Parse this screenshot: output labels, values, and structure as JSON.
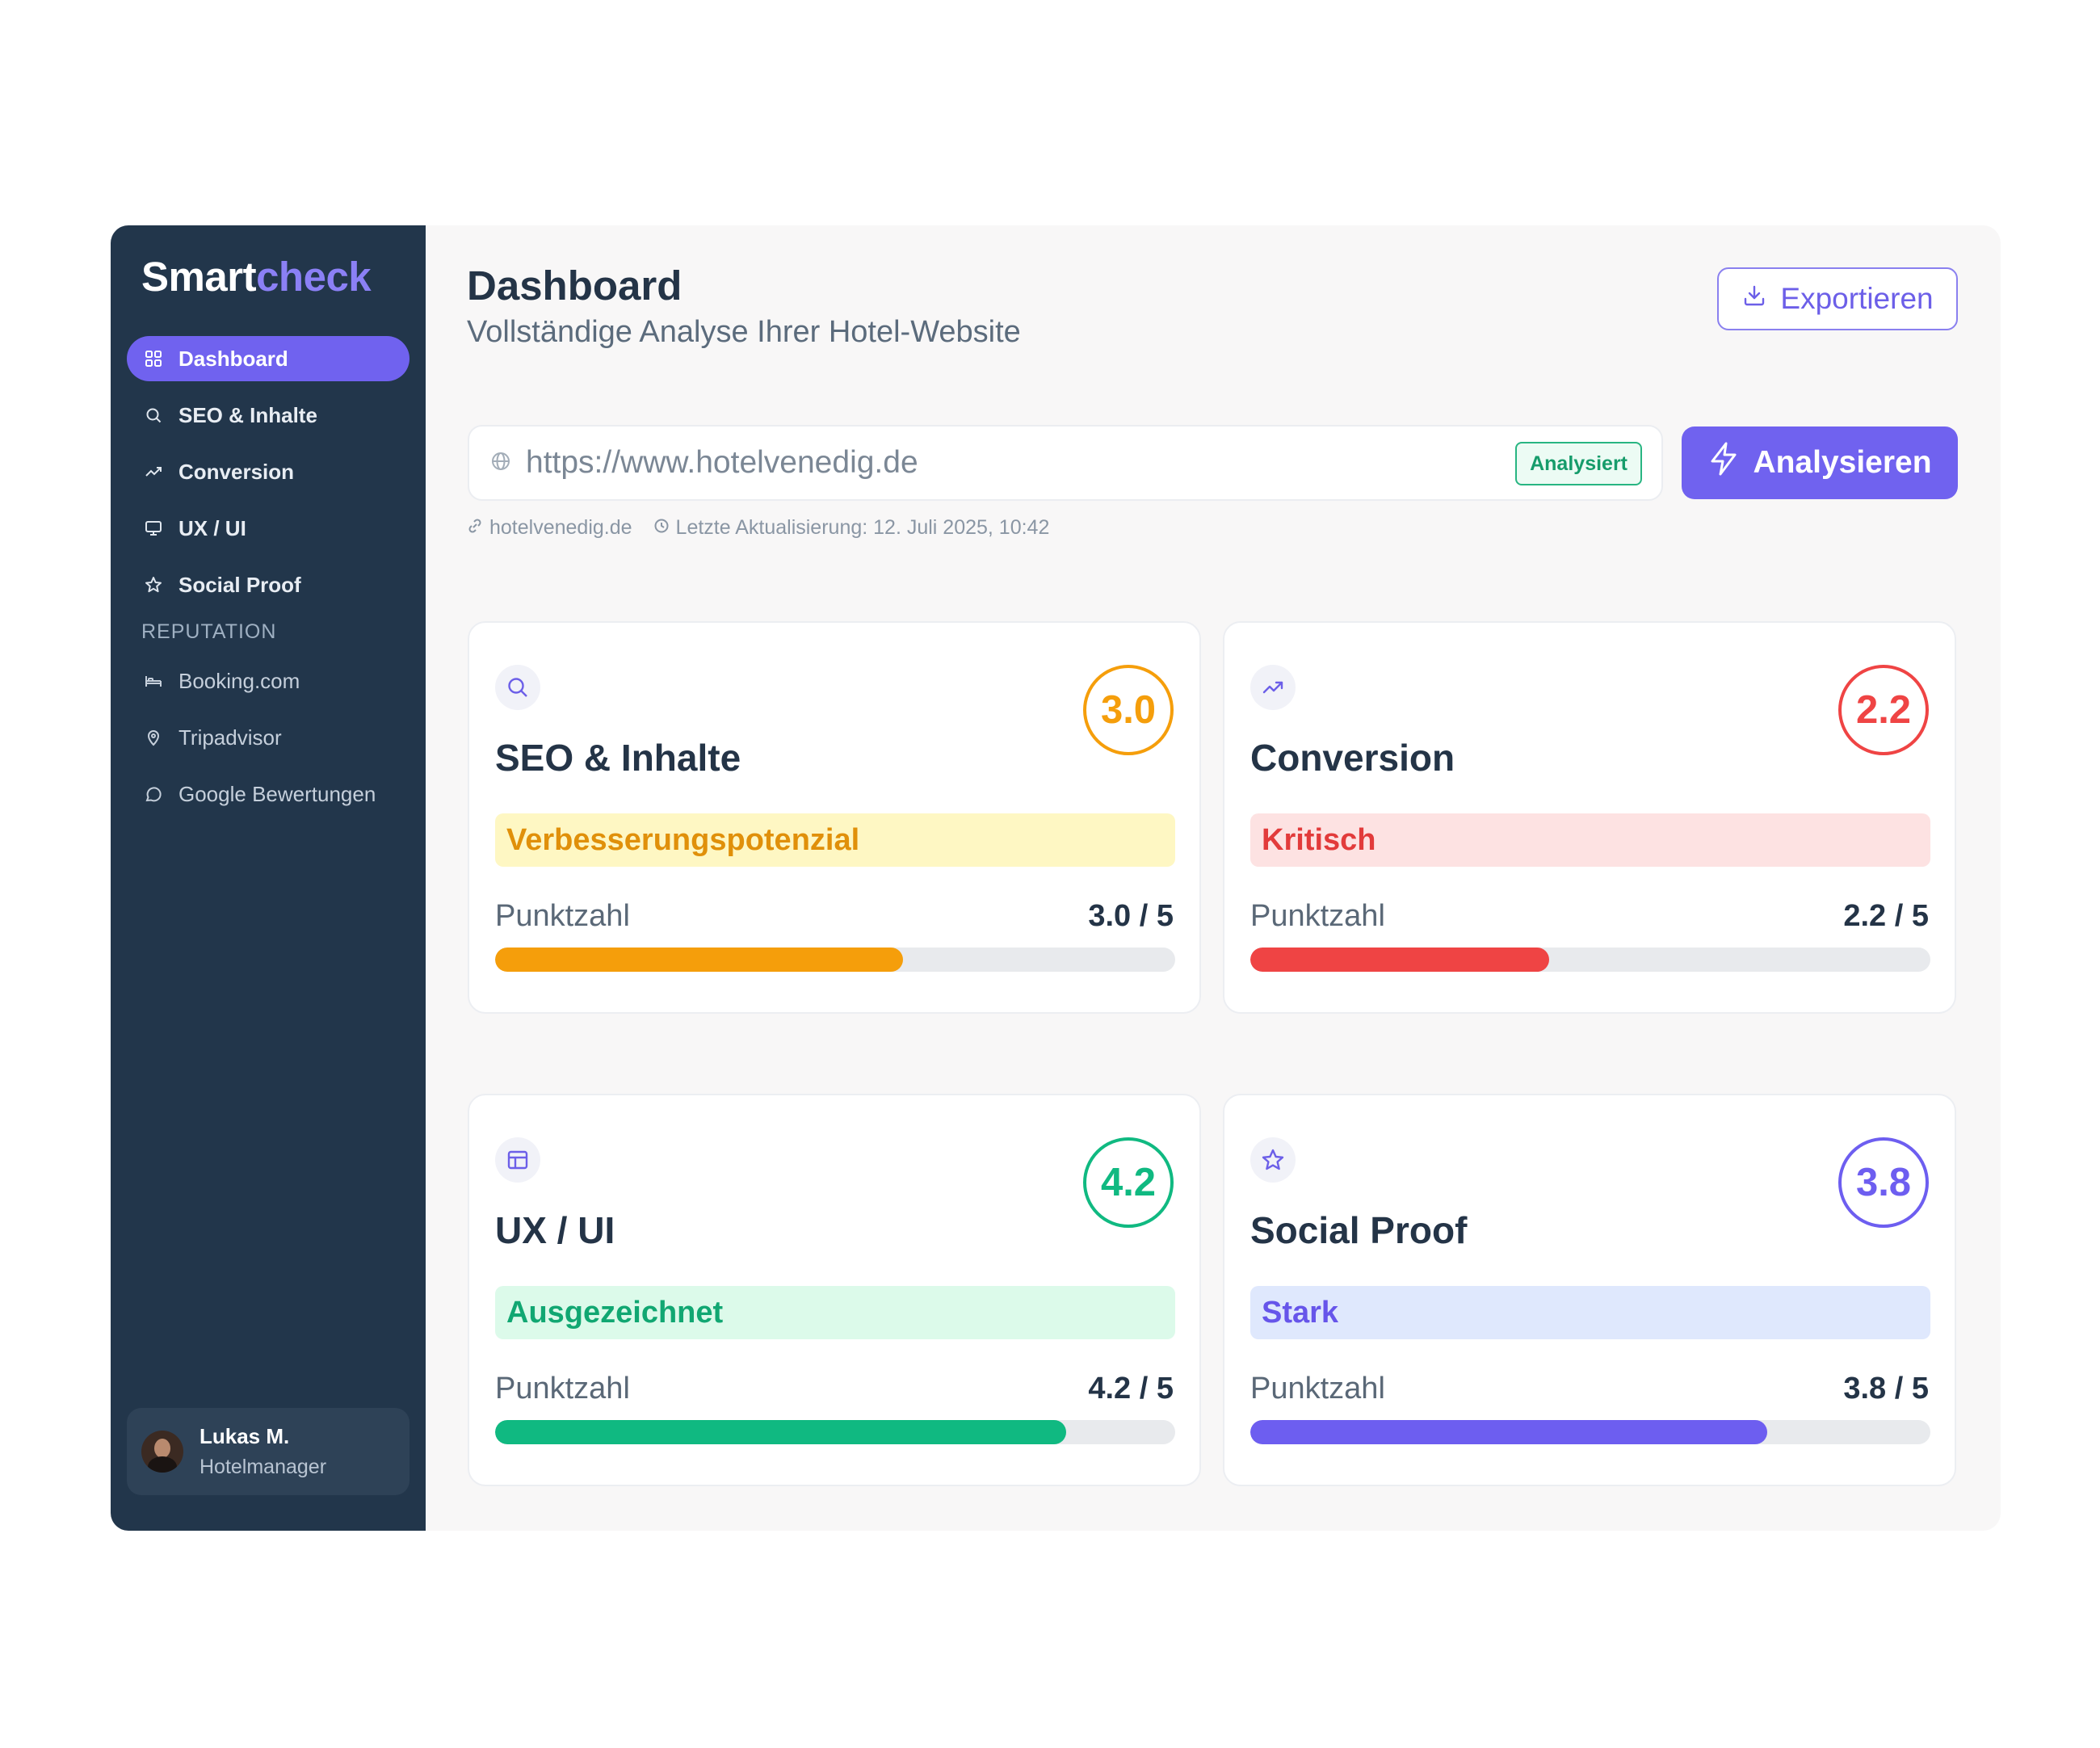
{
  "brand": {
    "part1": "Smart",
    "part2": "check"
  },
  "sidebar": {
    "items": [
      {
        "label": "Dashboard",
        "icon": "grid-icon",
        "active": true
      },
      {
        "label": "SEO & Inhalte",
        "icon": "search-icon"
      },
      {
        "label": "Conversion",
        "icon": "trending-up-icon"
      },
      {
        "label": "UX / UI",
        "icon": "monitor-icon"
      },
      {
        "label": "Social Proof",
        "icon": "star-icon"
      }
    ],
    "section_label": "REPUTATION",
    "reputation_items": [
      {
        "label": "Booking.com",
        "icon": "bed-icon"
      },
      {
        "label": "Tripadvisor",
        "icon": "map-pin-icon"
      },
      {
        "label": "Google Bewertungen",
        "icon": "message-circle-icon"
      }
    ],
    "user": {
      "name": "Lukas M.",
      "role": "Hotelmanager"
    }
  },
  "header": {
    "title": "Dashboard",
    "subtitle": "Vollständige Analyse Ihrer Hotel-Website",
    "export_label": "Exportieren"
  },
  "analysis": {
    "url_value": "https://www.hotelvenedig.de",
    "status": "Analysiert",
    "analyze_label": "Analysieren",
    "domain": "hotelvenedig.de",
    "last_update": "Letzte Aktualisierung: 12. Juli 2025, 10:42"
  },
  "cards": [
    {
      "title": "SEO & Inhalte",
      "icon": "search-icon",
      "score": "3.0",
      "tag": "Verbesserungspotenzial",
      "score_label": "Punktzahl",
      "score_text": "3.0 / 5",
      "fraction": 0.6,
      "color": "#f59e0b",
      "tag_bg": "#fef7c3",
      "tag_color": "#e0900a"
    },
    {
      "title": "Conversion",
      "icon": "trending-up-icon",
      "score": "2.2",
      "tag": "Kritisch",
      "score_label": "Punktzahl",
      "score_text": "2.2 / 5",
      "fraction": 0.44,
      "color": "#ef4444",
      "tag_bg": "#fde2e2",
      "tag_color": "#e23b3b"
    },
    {
      "title": "UX / UI",
      "icon": "layout-icon",
      "score": "4.2",
      "tag": "Ausgezeichnet",
      "score_label": "Punktzahl",
      "score_text": "4.2 / 5",
      "fraction": 0.84,
      "color": "#10b981",
      "tag_bg": "#dcfaea",
      "tag_color": "#11a772"
    },
    {
      "title": "Social Proof",
      "icon": "star-icon",
      "score": "3.8",
      "tag": "Stark",
      "score_label": "Punktzahl",
      "score_text": "3.8 / 5",
      "fraction": 0.76,
      "color": "#6d5ef0",
      "tag_bg": "#dfe8fd",
      "tag_color": "#6655ea"
    }
  ]
}
